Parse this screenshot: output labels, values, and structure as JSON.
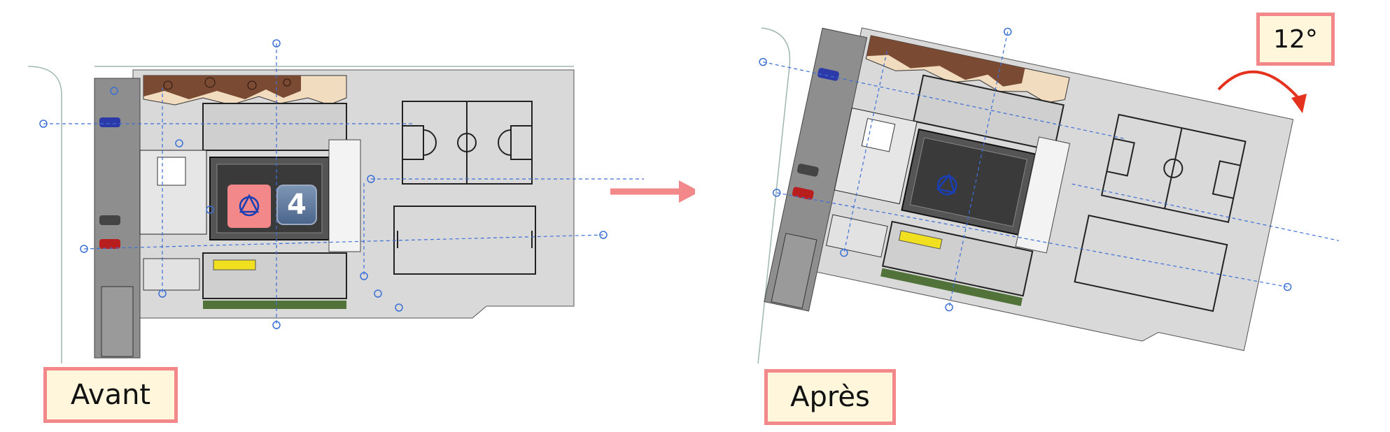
{
  "labels": {
    "before": "Avant",
    "after": "Après",
    "rotation": "12°"
  },
  "badge": {
    "count": "4",
    "icon": "project-base-point-icon"
  },
  "colors": {
    "label_border": "#f2888a",
    "label_fill": "#fff6dc",
    "arrow": "#f2888a",
    "rotation_arrow": "#e5321e",
    "grid_line": "#3c6fd6",
    "site": "#d9d9d9",
    "building": "#c8c8c8",
    "court_line": "#222222",
    "vegetation": "#7a4a32"
  }
}
